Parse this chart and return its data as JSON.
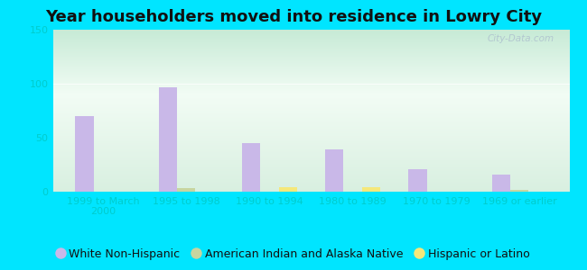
{
  "title": "Year householders moved into residence in Lowry City",
  "categories": [
    "1999 to March\n2000",
    "1995 to 1998",
    "1990 to 1994",
    "1980 to 1989",
    "1970 to 1979",
    "1969 or earlier"
  ],
  "series": {
    "White Non-Hispanic": [
      70,
      97,
      45,
      39,
      21,
      16
    ],
    "American Indian and Alaska Native": [
      0,
      3,
      0,
      0,
      0,
      2
    ],
    "Hispanic or Latino": [
      0,
      0,
      4,
      4,
      0,
      0
    ]
  },
  "colors": {
    "White Non-Hispanic": "#c9b8e8",
    "American Indian and Alaska Native": "#c8d5a0",
    "Hispanic or Latino": "#f5e87a"
  },
  "bar_width": 0.22,
  "ylim": [
    0,
    150
  ],
  "yticks": [
    0,
    50,
    100,
    150
  ],
  "bg_outer": "#00e5ff",
  "bg_plot_top_left": "#c8e8d8",
  "bg_plot_top_right": "#e8f4ee",
  "bg_plot_bottom": "#dff0e8",
  "watermark": "City-Data.com",
  "title_fontsize": 13,
  "tick_fontsize": 8,
  "legend_fontsize": 9,
  "tick_color": "#00cccc",
  "label_color": "#007799"
}
